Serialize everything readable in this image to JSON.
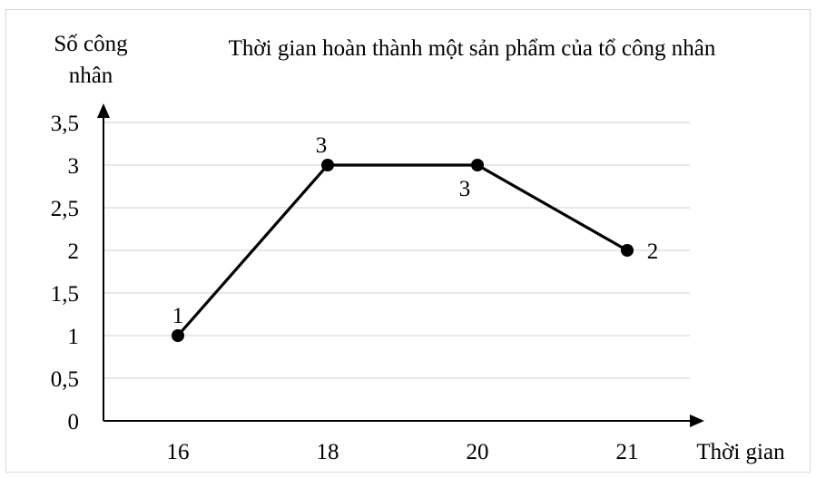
{
  "chart_data": {
    "type": "line",
    "title": "Thời gian hoàn thành một sản phẩm của tổ công nhân",
    "xlabel": "Thời gian",
    "ylabel": [
      "Số công",
      "nhân"
    ],
    "categories": [
      "16",
      "18",
      "20",
      "21"
    ],
    "values": [
      1,
      3,
      3,
      2
    ],
    "data_labels": [
      "1",
      "3",
      "3",
      "2"
    ],
    "ylim": [
      0,
      3.5
    ],
    "yticks": [
      "0",
      "0,5",
      "1",
      "1,5",
      "2",
      "2,5",
      "3",
      "3,5"
    ],
    "grid": true,
    "line_color": "#000000",
    "grid_color": "#d9d9d9"
  }
}
